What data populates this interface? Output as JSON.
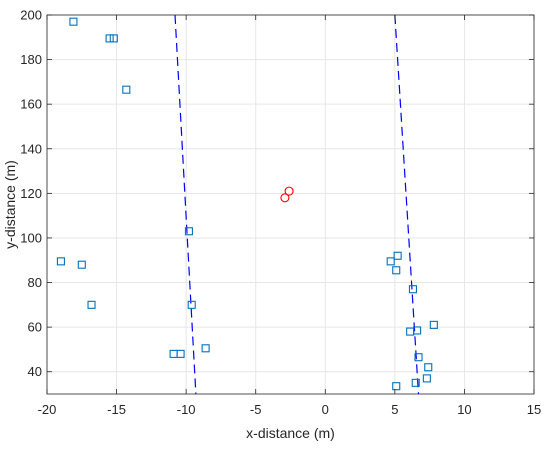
{
  "chart_data": {
    "type": "scatter",
    "xlabel": "x-distance (m)",
    "ylabel": "y-distance (m)",
    "xlim": [
      -20,
      15
    ],
    "ylim": [
      30,
      200
    ],
    "xticks": [
      -20,
      -15,
      -10,
      -5,
      0,
      5,
      10,
      15
    ],
    "yticks": [
      40,
      60,
      80,
      100,
      120,
      140,
      160,
      180,
      200
    ],
    "xtick_labels": [
      "-20",
      "-15",
      "-10",
      "-5",
      "0",
      "5",
      "10",
      "15"
    ],
    "ytick_labels": [
      "40",
      "60",
      "80",
      "100",
      "120",
      "140",
      "160",
      "180",
      "200"
    ],
    "grid": true,
    "series": [
      {
        "marker": "square",
        "color": "#0072BD",
        "points": [
          [
            -18.1,
            197
          ],
          [
            -15.5,
            189.5
          ],
          [
            -15.2,
            189.5
          ],
          [
            -14.3,
            166.5
          ],
          [
            -19.0,
            89.5
          ],
          [
            -17.5,
            88
          ],
          [
            -16.8,
            70
          ],
          [
            -9.8,
            103
          ],
          [
            -9.6,
            70
          ],
          [
            -10.9,
            48
          ],
          [
            -10.4,
            48
          ],
          [
            -8.6,
            50.5
          ],
          [
            4.7,
            89.5
          ],
          [
            5.2,
            92
          ],
          [
            5.1,
            85.5
          ],
          [
            6.3,
            77
          ],
          [
            6.1,
            58
          ],
          [
            6.6,
            58.5
          ],
          [
            7.8,
            61
          ],
          [
            6.7,
            46.5
          ],
          [
            7.4,
            42
          ],
          [
            7.3,
            37
          ],
          [
            6.5,
            35
          ],
          [
            5.1,
            33.5
          ]
        ]
      },
      {
        "marker": "circle",
        "color": "#FF0000",
        "points": [
          [
            -2.6,
            121
          ],
          [
            -2.9,
            118
          ]
        ]
      }
    ],
    "lines": [
      {
        "style": "dashed",
        "color": "#0000FF",
        "points": [
          [
            -10.8,
            200
          ],
          [
            -9.3,
            30
          ]
        ]
      },
      {
        "style": "dashed",
        "color": "#0000FF",
        "points": [
          [
            5.0,
            200
          ],
          [
            6.7,
            30
          ]
        ]
      }
    ]
  }
}
